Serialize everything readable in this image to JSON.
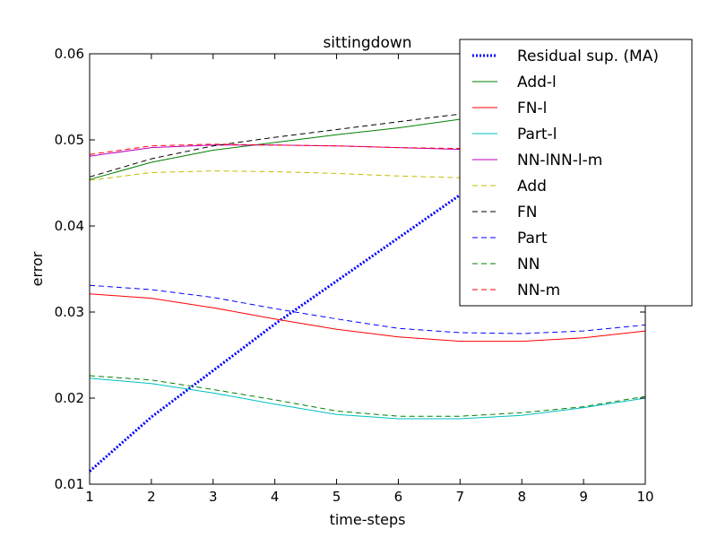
{
  "chart_data": {
    "type": "line",
    "title": "sittingdown",
    "xlabel": "time-steps",
    "ylabel": "error",
    "xlim": [
      1,
      10
    ],
    "ylim": [
      0.01,
      0.06
    ],
    "x": [
      1,
      2,
      3,
      4,
      5,
      6,
      7,
      8,
      9,
      10
    ],
    "x_tick_labels": [
      "1",
      "2",
      "3",
      "4",
      "5",
      "6",
      "7",
      "8",
      "9",
      "10"
    ],
    "y_ticks": [
      0.01,
      0.02,
      0.03,
      0.04,
      0.05,
      0.06
    ],
    "y_tick_labels": [
      "0.01",
      "0.02",
      "0.03",
      "0.04",
      "0.05",
      "0.06"
    ],
    "grid": false,
    "legend_position": "top-right",
    "series": [
      {
        "name": "Residual sup. (MA)",
        "color": "#0000ff",
        "style": "dotted",
        "width": 3,
        "values": [
          0.0115,
          0.0178,
          0.0232,
          0.0286,
          0.0336,
          0.0386,
          0.0436,
          0.0486,
          0.0536,
          0.0586
        ]
      },
      {
        "name": "Add-l",
        "color": "#008000",
        "style": "solid",
        "width": 1,
        "values": [
          0.0454,
          0.0474,
          0.0488,
          0.0497,
          0.0506,
          0.0514,
          0.0524,
          0.0534,
          0.0544,
          0.0554
        ]
      },
      {
        "name": "FN-l",
        "color": "#ff0000",
        "style": "solid",
        "width": 1,
        "values": [
          0.0321,
          0.0316,
          0.0305,
          0.0292,
          0.028,
          0.0271,
          0.0266,
          0.0266,
          0.027,
          0.0278
        ]
      },
      {
        "name": "Part-l",
        "color": "#00bfbf",
        "style": "solid",
        "width": 1,
        "values": [
          0.0223,
          0.0217,
          0.0206,
          0.0193,
          0.0181,
          0.0176,
          0.0176,
          0.018,
          0.0189,
          0.02
        ]
      },
      {
        "name": "NN-lNN-l-m",
        "color": "#bf00bf",
        "style": "solid",
        "width": 1,
        "values": [
          0.0481,
          0.0491,
          0.0494,
          0.0494,
          0.0493,
          0.0491,
          0.0489,
          0.0488,
          0.0488,
          0.0487
        ]
      },
      {
        "name": "Add",
        "color": "#bfbf00",
        "style": "dashed",
        "width": 1,
        "values": [
          0.0453,
          0.0462,
          0.0464,
          0.0463,
          0.0461,
          0.0458,
          0.0456,
          0.0455,
          0.0455,
          0.0455
        ]
      },
      {
        "name": "FN",
        "color": "#000000",
        "style": "dashed",
        "width": 1,
        "values": [
          0.0457,
          0.0478,
          0.0493,
          0.0503,
          0.0512,
          0.0521,
          0.053,
          0.0539,
          0.0548,
          0.0557
        ]
      },
      {
        "name": "Part",
        "color": "#0000ff",
        "style": "dashed",
        "width": 1,
        "values": [
          0.0331,
          0.0326,
          0.0317,
          0.0304,
          0.0292,
          0.0281,
          0.0276,
          0.0275,
          0.0278,
          0.0285
        ]
      },
      {
        "name": "NN",
        "color": "#008000",
        "style": "dashed",
        "width": 1,
        "values": [
          0.0226,
          0.0221,
          0.021,
          0.0198,
          0.0185,
          0.0179,
          0.0179,
          0.0183,
          0.019,
          0.0202
        ]
      },
      {
        "name": "NN-m",
        "color": "#ff0000",
        "style": "dashed",
        "width": 1,
        "values": [
          0.0483,
          0.0493,
          0.0495,
          0.0494,
          0.0493,
          0.0491,
          0.049,
          0.0489,
          0.0489,
          0.0488
        ]
      }
    ]
  }
}
